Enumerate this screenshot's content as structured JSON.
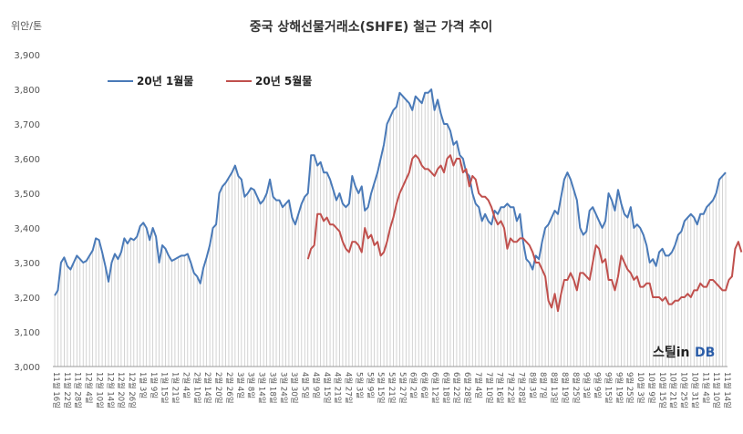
{
  "chart_data": {
    "type": "line",
    "title": "중국 상해선물거래소(SHFE) 철근 가격 추이",
    "ylabel": "위안/톤",
    "ylim": [
      3000,
      3900
    ],
    "yticks": [
      "3,000",
      "3,100",
      "3,200",
      "3,300",
      "3,400",
      "3,500",
      "3,600",
      "3,700",
      "3,800",
      "3,900"
    ],
    "legend_position": "top-left",
    "grid": "vertical lines from series to baseline",
    "x_labels": [
      "11월 16일",
      "11월 22일",
      "11월 28일",
      "12월 4일",
      "12월 10일",
      "12월 14일",
      "12월 20일",
      "12월 26일",
      "1월 3일",
      "1월 9일",
      "1월 15일",
      "1월 21일",
      "2월 4일",
      "2월 10일",
      "2월 14일",
      "2월 20일",
      "2월 26일",
      "3월 4일",
      "3월 8일",
      "3월 14일",
      "3월 18일",
      "3월 24일",
      "3월 30일",
      "4월 5일",
      "4월 9일",
      "4월 15일",
      "4월 21일",
      "4월 27일",
      "5월 3일",
      "5월 9일",
      "5월 15일",
      "5월 21일",
      "5월 27일",
      "6월 2일",
      "6월 6일",
      "6월 12일",
      "6월 18일",
      "6월 22일",
      "6월 28일",
      "7월 4일",
      "7월 10일",
      "7월 16일",
      "7월 22일",
      "7월 28일",
      "8월 3일",
      "8월 7일",
      "8월 13일",
      "8월 19일",
      "8월 25일",
      "9월 3일",
      "9월 9일",
      "9월 15일",
      "9월 19일",
      "9월 25일",
      "10월 3일",
      "10월 9일",
      "10월 15일",
      "10월 21일",
      "10월 25일",
      "10월 31일",
      "11월 4일",
      "11월 10일",
      "11월 14일"
    ],
    "series": [
      {
        "name": "20년 1월물",
        "color": "#4a7ab8",
        "start_index": 0,
        "values": [
          3205,
          3220,
          3300,
          3315,
          3290,
          3280,
          3300,
          3320,
          3310,
          3300,
          3305,
          3320,
          3335,
          3370,
          3365,
          3330,
          3290,
          3245,
          3300,
          3325,
          3310,
          3330,
          3370,
          3355,
          3370,
          3365,
          3375,
          3405,
          3415,
          3400,
          3365,
          3400,
          3375,
          3300,
          3350,
          3340,
          3320,
          3305,
          3310,
          3315,
          3320,
          3320,
          3325,
          3300,
          3270,
          3260,
          3240,
          3285,
          3315,
          3350,
          3400,
          3410,
          3500,
          3520,
          3530,
          3545,
          3560,
          3580,
          3550,
          3540,
          3490,
          3500,
          3515,
          3510,
          3490,
          3470,
          3480,
          3500,
          3540,
          3490,
          3480,
          3480,
          3460,
          3470,
          3480,
          3430,
          3410,
          3440,
          3470,
          3490,
          3500,
          3610,
          3610,
          3580,
          3590,
          3560,
          3560,
          3540,
          3510,
          3480,
          3500,
          3470,
          3460,
          3470,
          3550,
          3520,
          3500,
          3520,
          3450,
          3460,
          3500,
          3530,
          3560,
          3600,
          3640,
          3700,
          3720,
          3740,
          3750,
          3790,
          3780,
          3770,
          3760,
          3740,
          3780,
          3770,
          3760,
          3790,
          3790,
          3800,
          3740,
          3770,
          3730,
          3700,
          3700,
          3680,
          3640,
          3650,
          3610,
          3600,
          3560,
          3550,
          3500,
          3470,
          3460,
          3420,
          3440,
          3420,
          3410,
          3450,
          3440,
          3460,
          3460,
          3470,
          3460,
          3460,
          3420,
          3440,
          3360,
          3310,
          3300,
          3280,
          3320,
          3310,
          3360,
          3400,
          3410,
          3430,
          3450,
          3440,
          3490,
          3540,
          3560,
          3540,
          3510,
          3480,
          3400,
          3380,
          3390,
          3450,
          3460,
          3440,
          3420,
          3400,
          3420,
          3500,
          3480,
          3450,
          3510,
          3470,
          3440,
          3430,
          3460,
          3400,
          3410,
          3400,
          3380,
          3350,
          3300,
          3310,
          3290,
          3330,
          3340,
          3320,
          3320,
          3330,
          3350,
          3380,
          3390,
          3420,
          3430,
          3440,
          3430,
          3410,
          3440,
          3440,
          3460,
          3470,
          3480,
          3500,
          3540,
          3550,
          3560
        ]
      },
      {
        "name": "20년 5월물",
        "color": "#c0504d",
        "start_index": 80,
        "values": [
          3310,
          3340,
          3350,
          3440,
          3440,
          3420,
          3430,
          3410,
          3410,
          3400,
          3390,
          3360,
          3340,
          3330,
          3360,
          3360,
          3350,
          3330,
          3400,
          3370,
          3380,
          3350,
          3360,
          3320,
          3330,
          3360,
          3400,
          3430,
          3470,
          3500,
          3520,
          3540,
          3560,
          3600,
          3610,
          3600,
          3580,
          3570,
          3570,
          3560,
          3550,
          3570,
          3580,
          3560,
          3600,
          3610,
          3580,
          3600,
          3600,
          3560,
          3570,
          3520,
          3550,
          3540,
          3500,
          3490,
          3490,
          3480,
          3460,
          3430,
          3410,
          3420,
          3400,
          3340,
          3370,
          3360,
          3360,
          3370,
          3370,
          3360,
          3350,
          3330,
          3300,
          3300,
          3280,
          3260,
          3190,
          3170,
          3210,
          3160,
          3210,
          3250,
          3250,
          3270,
          3250,
          3220,
          3270,
          3270,
          3260,
          3250,
          3300,
          3350,
          3340,
          3300,
          3310,
          3250,
          3250,
          3220,
          3260,
          3320,
          3300,
          3280,
          3270,
          3250,
          3260,
          3230,
          3230,
          3240,
          3240,
          3200,
          3200,
          3200,
          3190,
          3200,
          3180,
          3180,
          3190,
          3190,
          3200,
          3200,
          3210,
          3200,
          3220,
          3220,
          3240,
          3230,
          3230,
          3250,
          3250,
          3240,
          3230,
          3220,
          3220,
          3250,
          3260,
          3340,
          3360,
          3330
        ]
      }
    ]
  },
  "legend": {
    "series1_label": "20년 1월물",
    "series2_label": "20년 5월물"
  },
  "watermark": {
    "part_a": "스틸in",
    "part_b": "DB"
  }
}
